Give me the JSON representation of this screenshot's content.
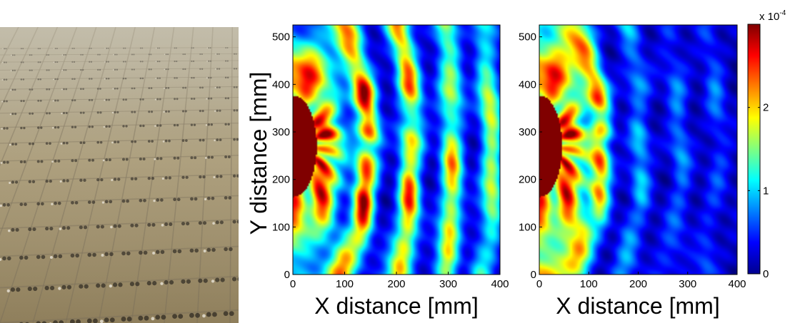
{
  "photo": {
    "icon": "phased-array-board-photo"
  },
  "chart_data": [
    {
      "type": "heatmap",
      "id": "left-field-map",
      "title": "",
      "xlabel": "X distance [mm]",
      "ylabel": "Y distance [mm]",
      "xlim": [
        0,
        400
      ],
      "ylim": [
        0,
        525
      ],
      "xticks": [
        "0",
        "100",
        "200",
        "300",
        "400"
      ],
      "yticks": [
        "0",
        "100",
        "200",
        "300",
        "400",
        "500"
      ],
      "grid": false,
      "colormap": "jet",
      "clim": [
        0,
        0.0003
      ],
      "source": {
        "x": 0,
        "y": 270
      },
      "wavefronts": [
        {
          "r": 60,
          "amp": 1.0
        },
        {
          "r": 145,
          "amp": 0.95
        },
        {
          "r": 230,
          "amp": 0.82
        },
        {
          "r": 310,
          "amp": 0.7
        },
        {
          "r": 385,
          "amp": 0.58
        }
      ]
    },
    {
      "type": "heatmap",
      "id": "right-field-map",
      "title": "",
      "xlabel": "X distance [mm]",
      "ylabel": "",
      "xlim": [
        0,
        400
      ],
      "ylim": [
        0,
        525
      ],
      "xticks": [
        "0",
        "100",
        "200",
        "300",
        "400"
      ],
      "yticks": [
        "0",
        "100",
        "200",
        "300",
        "400",
        "500"
      ],
      "grid": false,
      "colormap": "jet",
      "clim": [
        0,
        0.0003
      ],
      "source": {
        "x": 0,
        "y": 270
      },
      "wavefronts": [
        {
          "r": 60,
          "amp": 1.0
        },
        {
          "r": 125,
          "amp": 0.78
        },
        {
          "r": 205,
          "amp": 0.3
        },
        {
          "r": 285,
          "amp": 0.22
        },
        {
          "r": 360,
          "amp": 0.17
        }
      ]
    }
  ],
  "colorbar": {
    "exponent_base": "x 10",
    "exponent": "-4",
    "ticks": [
      {
        "value": 0,
        "label": "0"
      },
      {
        "value": 1,
        "label": "1"
      },
      {
        "value": 2,
        "label": "2"
      }
    ],
    "max": 3
  }
}
